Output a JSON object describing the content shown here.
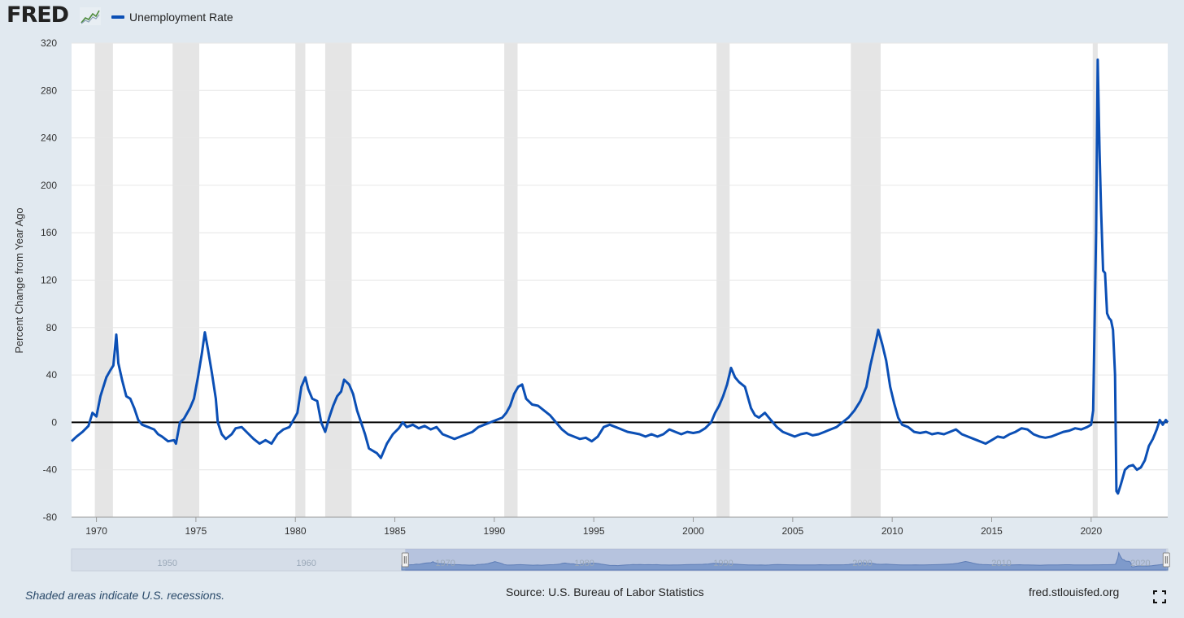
{
  "header": {
    "logo_text": "FRED",
    "logo_icon": "chart-line-icon",
    "legend_label": "Unemployment Rate",
    "legend_color": "#0b4fb5"
  },
  "footer": {
    "note": "Shaded areas indicate U.S. recessions.",
    "source": "Source: U.S. Bureau of Labor Statistics",
    "url": "fred.stlouisfed.org",
    "fullscreen_icon": "fullscreen-icon"
  },
  "navigator": {
    "tick_labels": [
      "1950",
      "1960",
      "1970",
      "1980",
      "1990",
      "2000",
      "2010",
      "2020"
    ],
    "range": [
      1969,
      2023.75
    ]
  },
  "colors": {
    "line": "#0b4fb5",
    "recession": "#e5e5e5",
    "background": "#e1e9f0",
    "zero_line": "#000000"
  },
  "chart_data": {
    "type": "line",
    "ylabel": "Percent Change from Year Ago",
    "xlim": [
      1968.75,
      2023.85
    ],
    "ylim": [
      -80,
      320
    ],
    "yticks": [
      -80,
      -40,
      0,
      40,
      80,
      120,
      160,
      200,
      240,
      280,
      320
    ],
    "xticks": [
      1970,
      1975,
      1980,
      1985,
      1990,
      1995,
      2000,
      2005,
      2010,
      2015,
      2020
    ],
    "grid": true,
    "legend_position": "top-left",
    "recessions": [
      [
        1969.92,
        1970.83
      ],
      [
        1973.83,
        1975.17
      ],
      [
        1980.0,
        1980.5
      ],
      [
        1981.5,
        1982.83
      ],
      [
        1990.5,
        1991.17
      ],
      [
        2001.17,
        2001.83
      ],
      [
        2007.92,
        2009.42
      ],
      [
        2020.08,
        2020.33
      ]
    ],
    "series": [
      {
        "name": "Unemployment Rate",
        "color": "#0b4fb5",
        "points": [
          [
            1968.75,
            -16
          ],
          [
            1969.0,
            -12
          ],
          [
            1969.3,
            -8
          ],
          [
            1969.6,
            -3
          ],
          [
            1969.8,
            8
          ],
          [
            1970.0,
            5
          ],
          [
            1970.2,
            22
          ],
          [
            1970.5,
            38
          ],
          [
            1970.7,
            44
          ],
          [
            1970.85,
            48
          ],
          [
            1971.0,
            74
          ],
          [
            1971.1,
            50
          ],
          [
            1971.3,
            35
          ],
          [
            1971.5,
            22
          ],
          [
            1971.7,
            20
          ],
          [
            1971.9,
            12
          ],
          [
            1972.1,
            2
          ],
          [
            1972.3,
            -2
          ],
          [
            1972.6,
            -4
          ],
          [
            1972.9,
            -6
          ],
          [
            1973.1,
            -10
          ],
          [
            1973.3,
            -12
          ],
          [
            1973.6,
            -16
          ],
          [
            1973.9,
            -15
          ],
          [
            1974.0,
            -18
          ],
          [
            1974.2,
            0
          ],
          [
            1974.4,
            3
          ],
          [
            1974.7,
            12
          ],
          [
            1974.9,
            20
          ],
          [
            1975.1,
            38
          ],
          [
            1975.3,
            58
          ],
          [
            1975.45,
            76
          ],
          [
            1975.6,
            62
          ],
          [
            1975.8,
            42
          ],
          [
            1976.0,
            20
          ],
          [
            1976.1,
            0
          ],
          [
            1976.3,
            -10
          ],
          [
            1976.5,
            -14
          ],
          [
            1976.8,
            -10
          ],
          [
            1977.0,
            -5
          ],
          [
            1977.3,
            -4
          ],
          [
            1977.6,
            -9
          ],
          [
            1977.9,
            -14
          ],
          [
            1978.2,
            -18
          ],
          [
            1978.5,
            -15
          ],
          [
            1978.8,
            -18
          ],
          [
            1979.1,
            -10
          ],
          [
            1979.4,
            -6
          ],
          [
            1979.7,
            -4
          ],
          [
            1979.9,
            2
          ],
          [
            1980.1,
            8
          ],
          [
            1980.3,
            30
          ],
          [
            1980.5,
            38
          ],
          [
            1980.65,
            28
          ],
          [
            1980.85,
            20
          ],
          [
            1981.1,
            18
          ],
          [
            1981.3,
            0
          ],
          [
            1981.5,
            -8
          ],
          [
            1981.7,
            4
          ],
          [
            1981.9,
            14
          ],
          [
            1982.1,
            22
          ],
          [
            1982.3,
            26
          ],
          [
            1982.45,
            36
          ],
          [
            1982.7,
            32
          ],
          [
            1982.9,
            24
          ],
          [
            1983.1,
            10
          ],
          [
            1983.3,
            0
          ],
          [
            1983.5,
            -10
          ],
          [
            1983.7,
            -22
          ],
          [
            1983.9,
            -24
          ],
          [
            1984.1,
            -26
          ],
          [
            1984.3,
            -30
          ],
          [
            1984.6,
            -18
          ],
          [
            1984.9,
            -10
          ],
          [
            1985.2,
            -5
          ],
          [
            1985.4,
            0
          ],
          [
            1985.6,
            -4
          ],
          [
            1985.9,
            -2
          ],
          [
            1986.2,
            -5
          ],
          [
            1986.5,
            -3
          ],
          [
            1986.8,
            -6
          ],
          [
            1987.1,
            -4
          ],
          [
            1987.4,
            -10
          ],
          [
            1987.7,
            -12
          ],
          [
            1988.0,
            -14
          ],
          [
            1988.3,
            -12
          ],
          [
            1988.6,
            -10
          ],
          [
            1988.9,
            -8
          ],
          [
            1989.2,
            -4
          ],
          [
            1989.5,
            -2
          ],
          [
            1989.8,
            0
          ],
          [
            1990.1,
            2
          ],
          [
            1990.4,
            4
          ],
          [
            1990.6,
            8
          ],
          [
            1990.8,
            14
          ],
          [
            1991.0,
            24
          ],
          [
            1991.2,
            30
          ],
          [
            1991.4,
            32
          ],
          [
            1991.6,
            20
          ],
          [
            1991.9,
            15
          ],
          [
            1992.2,
            14
          ],
          [
            1992.5,
            10
          ],
          [
            1992.8,
            6
          ],
          [
            1993.1,
            0
          ],
          [
            1993.4,
            -6
          ],
          [
            1993.7,
            -10
          ],
          [
            1994.0,
            -12
          ],
          [
            1994.3,
            -14
          ],
          [
            1994.6,
            -13
          ],
          [
            1994.9,
            -16
          ],
          [
            1995.2,
            -12
          ],
          [
            1995.5,
            -4
          ],
          [
            1995.8,
            -2
          ],
          [
            1996.1,
            -4
          ],
          [
            1996.4,
            -6
          ],
          [
            1996.7,
            -8
          ],
          [
            1997.0,
            -9
          ],
          [
            1997.3,
            -10
          ],
          [
            1997.6,
            -12
          ],
          [
            1997.9,
            -10
          ],
          [
            1998.2,
            -12
          ],
          [
            1998.5,
            -10
          ],
          [
            1998.8,
            -6
          ],
          [
            1999.1,
            -8
          ],
          [
            1999.4,
            -10
          ],
          [
            1999.7,
            -8
          ],
          [
            2000.0,
            -9
          ],
          [
            2000.3,
            -8
          ],
          [
            2000.6,
            -5
          ],
          [
            2000.9,
            0
          ],
          [
            2001.1,
            8
          ],
          [
            2001.3,
            14
          ],
          [
            2001.5,
            22
          ],
          [
            2001.7,
            32
          ],
          [
            2001.9,
            46
          ],
          [
            2002.1,
            38
          ],
          [
            2002.3,
            34
          ],
          [
            2002.6,
            30
          ],
          [
            2002.9,
            12
          ],
          [
            2003.1,
            6
          ],
          [
            2003.3,
            4
          ],
          [
            2003.6,
            8
          ],
          [
            2003.9,
            2
          ],
          [
            2004.2,
            -4
          ],
          [
            2004.5,
            -8
          ],
          [
            2004.8,
            -10
          ],
          [
            2005.1,
            -12
          ],
          [
            2005.4,
            -10
          ],
          [
            2005.7,
            -9
          ],
          [
            2006.0,
            -11
          ],
          [
            2006.3,
            -10
          ],
          [
            2006.6,
            -8
          ],
          [
            2006.9,
            -6
          ],
          [
            2007.2,
            -4
          ],
          [
            2007.5,
            0
          ],
          [
            2007.8,
            4
          ],
          [
            2008.1,
            10
          ],
          [
            2008.4,
            18
          ],
          [
            2008.7,
            30
          ],
          [
            2008.9,
            48
          ],
          [
            2009.2,
            70
          ],
          [
            2009.3,
            78
          ],
          [
            2009.5,
            66
          ],
          [
            2009.7,
            52
          ],
          [
            2009.9,
            30
          ],
          [
            2010.1,
            16
          ],
          [
            2010.3,
            4
          ],
          [
            2010.5,
            -2
          ],
          [
            2010.8,
            -4
          ],
          [
            2011.1,
            -8
          ],
          [
            2011.4,
            -9
          ],
          [
            2011.7,
            -8
          ],
          [
            2012.0,
            -10
          ],
          [
            2012.3,
            -9
          ],
          [
            2012.6,
            -10
          ],
          [
            2012.9,
            -8
          ],
          [
            2013.2,
            -6
          ],
          [
            2013.5,
            -10
          ],
          [
            2013.8,
            -12
          ],
          [
            2014.1,
            -14
          ],
          [
            2014.4,
            -16
          ],
          [
            2014.7,
            -18
          ],
          [
            2015.0,
            -15
          ],
          [
            2015.3,
            -12
          ],
          [
            2015.6,
            -13
          ],
          [
            2015.9,
            -10
          ],
          [
            2016.2,
            -8
          ],
          [
            2016.5,
            -5
          ],
          [
            2016.8,
            -6
          ],
          [
            2017.1,
            -10
          ],
          [
            2017.4,
            -12
          ],
          [
            2017.7,
            -13
          ],
          [
            2018.0,
            -12
          ],
          [
            2018.3,
            -10
          ],
          [
            2018.6,
            -8
          ],
          [
            2018.9,
            -7
          ],
          [
            2019.2,
            -5
          ],
          [
            2019.5,
            -6
          ],
          [
            2019.8,
            -4
          ],
          [
            2020.0,
            -2
          ],
          [
            2020.1,
            10
          ],
          [
            2020.25,
            160
          ],
          [
            2020.33,
            306
          ],
          [
            2020.42,
            230
          ],
          [
            2020.5,
            180
          ],
          [
            2020.6,
            128
          ],
          [
            2020.7,
            126
          ],
          [
            2020.8,
            92
          ],
          [
            2020.9,
            88
          ],
          [
            2021.0,
            86
          ],
          [
            2021.1,
            78
          ],
          [
            2021.2,
            40
          ],
          [
            2021.27,
            -58
          ],
          [
            2021.35,
            -60
          ],
          [
            2021.5,
            -52
          ],
          [
            2021.7,
            -40
          ],
          [
            2021.9,
            -37
          ],
          [
            2022.1,
            -36
          ],
          [
            2022.3,
            -40
          ],
          [
            2022.5,
            -38
          ],
          [
            2022.7,
            -32
          ],
          [
            2022.9,
            -20
          ],
          [
            2023.1,
            -14
          ],
          [
            2023.3,
            -6
          ],
          [
            2023.45,
            2
          ],
          [
            2023.6,
            -2
          ],
          [
            2023.75,
            2
          ],
          [
            2023.85,
            0
          ]
        ]
      }
    ]
  }
}
